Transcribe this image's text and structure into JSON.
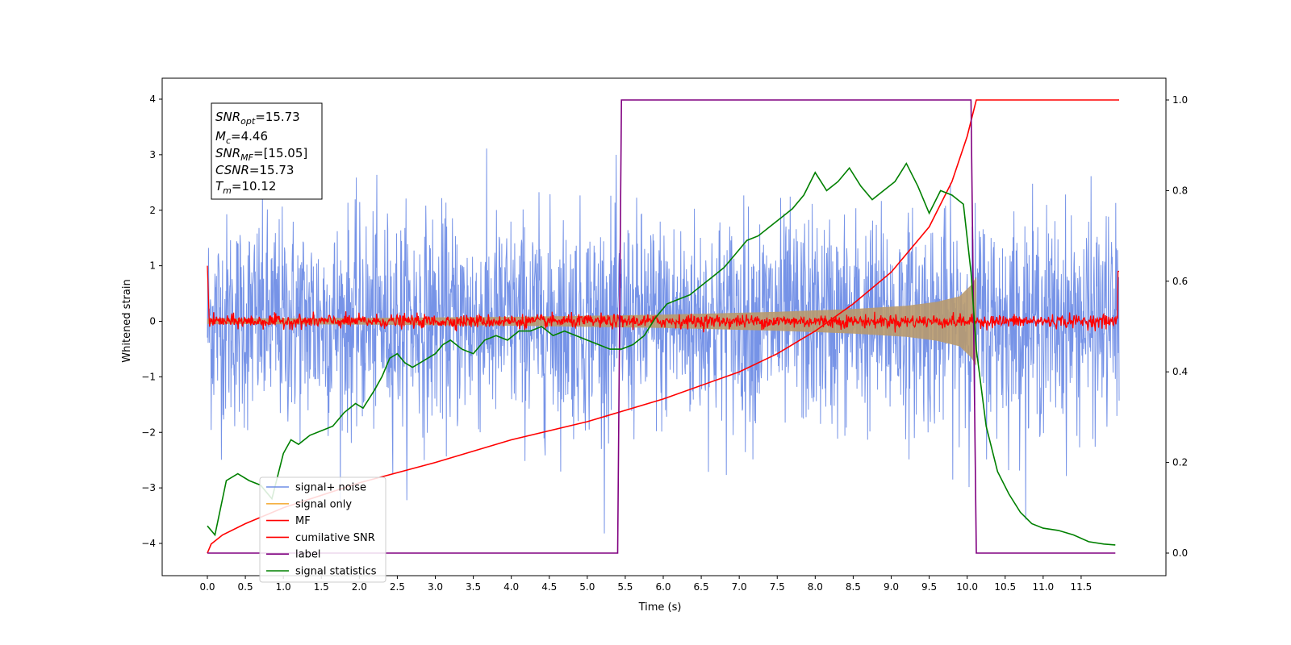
{
  "chart_data": {
    "type": "line",
    "title": "",
    "xlabel": "Time (s)",
    "ylabel": "Whitened strain",
    "y2label": "",
    "xlim": [
      -0.6,
      12.6
    ],
    "ylim": [
      -4.55,
      4.38
    ],
    "y2lim": [
      -0.045,
      1.018
    ],
    "x_ticks": [
      "0.0",
      "0.5",
      "1.0",
      "1.5",
      "2.0",
      "2.5",
      "3.0",
      "3.5",
      "4.0",
      "4.5",
      "5.0",
      "5.5",
      "6.0",
      "6.5",
      "7.0",
      "7.5",
      "8.0",
      "8.5",
      "9.0",
      "9.5",
      "10.0",
      "10.5",
      "11.0",
      "11.5"
    ],
    "y_ticks": [
      "4",
      "3",
      "2",
      "1",
      "0",
      "−1",
      "−2",
      "−3",
      "−4"
    ],
    "y2_ticks": [
      "1.0",
      "0.8",
      "0.6",
      "0.4",
      "0.2",
      "0.0"
    ],
    "annotation": {
      "snr_opt": "=15.73",
      "mc": "=4.46",
      "snr_mf": "=[15.05]",
      "csnr": "=15.73",
      "tm": "=10.12"
    },
    "legend": {
      "position": "lower-left",
      "entries": [
        {
          "label": "signal+ noise",
          "color": "#6f8de6"
        },
        {
          "label": "signal only",
          "color": "#f5b041"
        },
        {
          "label": "MF",
          "color": "#ff0000"
        },
        {
          "label": "cumilative SNR",
          "color": "#ff0000"
        },
        {
          "label": "label",
          "color": "#800080"
        },
        {
          "label": "signal statistics",
          "color": "#008000"
        }
      ]
    },
    "series": [
      {
        "name": "signal+ noise",
        "axis": "left",
        "color": "#6f8de6",
        "style": "noise band, amplitude approx ±2 (peaks to ±4)",
        "x_range": [
          0.0,
          12.0
        ],
        "typical_amplitude": 2.0,
        "peak_amplitude": 4.0
      },
      {
        "name": "signal only",
        "axis": "left",
        "color": "#f5b041",
        "style": "chirp envelope",
        "envelope": {
          "x": [
            0.0,
            2.0,
            4.0,
            6.0,
            7.5,
            8.5,
            9.2,
            9.6,
            9.9,
            10.05,
            10.12
          ],
          "y": [
            0.05,
            0.06,
            0.08,
            0.12,
            0.17,
            0.22,
            0.28,
            0.35,
            0.45,
            0.65,
            0.8
          ]
        }
      },
      {
        "name": "MF",
        "axis": "left",
        "color": "#ff0000",
        "style": "noisy trace around 0, amplitude ~0.15, ends spike to ~1",
        "x_range": [
          0.0,
          12.0
        ]
      },
      {
        "name": "cumilative SNR",
        "axis": "right",
        "x": [
          0.0,
          0.05,
          0.2,
          0.5,
          1.0,
          2.0,
          3.0,
          4.0,
          5.0,
          6.0,
          7.0,
          7.5,
          8.0,
          8.5,
          9.0,
          9.5,
          9.8,
          10.0,
          10.12,
          12.0
        ],
        "y": [
          0.0,
          0.02,
          0.04,
          0.065,
          0.1,
          0.155,
          0.2,
          0.25,
          0.29,
          0.34,
          0.4,
          0.44,
          0.49,
          0.55,
          0.62,
          0.72,
          0.82,
          0.92,
          1.0,
          1.0
        ],
        "color": "#ff0000"
      },
      {
        "name": "label",
        "axis": "right",
        "x": [
          0.0,
          5.4,
          5.45,
          10.05,
          10.12,
          11.95
        ],
        "y": [
          0.0,
          0.0,
          1.0,
          1.0,
          0.0,
          0.0
        ],
        "color": "#800080"
      },
      {
        "name": "signal statistics",
        "axis": "right",
        "x": [
          0.0,
          0.1,
          0.25,
          0.4,
          0.55,
          0.7,
          0.85,
          1.0,
          1.1,
          1.2,
          1.35,
          1.5,
          1.65,
          1.8,
          1.95,
          2.05,
          2.2,
          2.3,
          2.4,
          2.5,
          2.6,
          2.7,
          2.8,
          2.9,
          3.0,
          3.1,
          3.2,
          3.35,
          3.5,
          3.65,
          3.8,
          3.95,
          4.1,
          4.25,
          4.4,
          4.55,
          4.7,
          4.85,
          5.0,
          5.15,
          5.3,
          5.45,
          5.6,
          5.75,
          5.9,
          6.05,
          6.2,
          6.35,
          6.5,
          6.65,
          6.8,
          6.95,
          7.1,
          7.25,
          7.4,
          7.55,
          7.7,
          7.85,
          8.0,
          8.15,
          8.3,
          8.45,
          8.6,
          8.75,
          8.9,
          9.05,
          9.2,
          9.35,
          9.5,
          9.65,
          9.8,
          9.95,
          10.05,
          10.12,
          10.25,
          10.4,
          10.55,
          10.7,
          10.85,
          11.0,
          11.2,
          11.4,
          11.6,
          11.8,
          11.95
        ],
        "y": [
          0.06,
          0.04,
          0.16,
          0.175,
          0.16,
          0.15,
          0.12,
          0.22,
          0.25,
          0.24,
          0.26,
          0.27,
          0.28,
          0.31,
          0.33,
          0.32,
          0.36,
          0.39,
          0.43,
          0.44,
          0.42,
          0.41,
          0.42,
          0.43,
          0.44,
          0.46,
          0.47,
          0.45,
          0.44,
          0.47,
          0.48,
          0.47,
          0.49,
          0.49,
          0.5,
          0.48,
          0.49,
          0.48,
          0.47,
          0.46,
          0.45,
          0.45,
          0.46,
          0.48,
          0.52,
          0.55,
          0.56,
          0.57,
          0.59,
          0.61,
          0.63,
          0.66,
          0.69,
          0.7,
          0.72,
          0.74,
          0.76,
          0.79,
          0.84,
          0.8,
          0.82,
          0.85,
          0.81,
          0.78,
          0.8,
          0.82,
          0.86,
          0.81,
          0.75,
          0.8,
          0.79,
          0.77,
          0.62,
          0.45,
          0.28,
          0.18,
          0.13,
          0.09,
          0.065,
          0.055,
          0.05,
          0.04,
          0.025,
          0.02,
          0.018
        ],
        "color": "#008000"
      }
    ]
  }
}
